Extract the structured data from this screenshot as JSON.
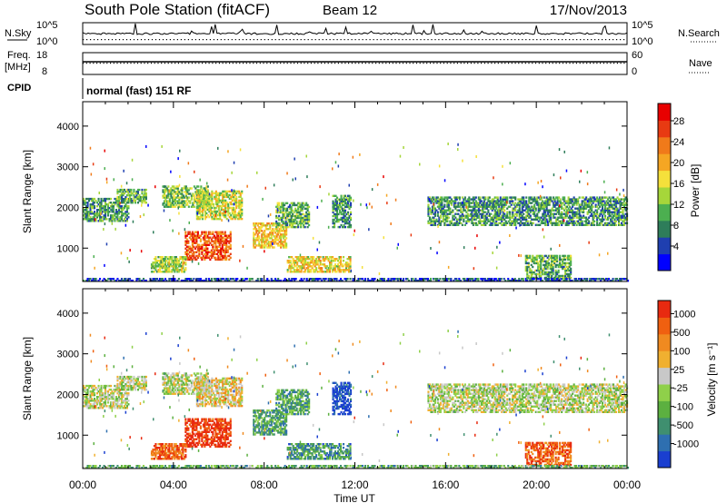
{
  "header": {
    "station": "South Pole Station (fitACF)",
    "beam": "Beam 12",
    "date": "17/Nov/2013"
  },
  "strips": {
    "nsky_label": "N.Sky",
    "nsky_ticks": [
      "10^5",
      "10^0"
    ],
    "nsearch_label": "N.Search",
    "nsearch_ticks": [
      "10^5",
      "10^0"
    ],
    "freq_label_1": "Freq.",
    "freq_label_2": "[MHz]",
    "freq_ticks": [
      "18",
      "8"
    ],
    "nave_label": "Nave",
    "nave_ticks": [
      "60",
      "0"
    ],
    "cpid_label": "CPID",
    "cpid_value": "normal (fast) 151 RF"
  },
  "chart_data": [
    {
      "type": "heatmap",
      "panel": "power",
      "ylabel": "Slant Range [km]",
      "yticks": [
        1000,
        2000,
        3000,
        4000
      ],
      "ylim": [
        180,
        4600
      ],
      "xlabel": "Time UT",
      "xticks": [
        "00:00",
        "04:00",
        "08:00",
        "12:00",
        "16:00",
        "20:00",
        "00:00"
      ],
      "xlim_hours": [
        0,
        24
      ],
      "colorbar": {
        "label": "Power [dB]",
        "ticks": [
          "28",
          "24",
          "20",
          "16",
          "12",
          "8",
          "4"
        ],
        "colors": [
          "#0000ff",
          "#1f3fb0",
          "#2e7d5a",
          "#4caf50",
          "#a6d63a",
          "#f5e03b",
          "#f5a623",
          "#f07a1a",
          "#e83a12",
          "#e80000"
        ]
      },
      "regions": [
        {
          "t0": 0.0,
          "t1": 2.0,
          "r0": 1650,
          "r1": 2200,
          "level": 0.3
        },
        {
          "t0": 1.5,
          "t1": 2.8,
          "r0": 2100,
          "r1": 2450,
          "level": 0.35
        },
        {
          "t0": 3.5,
          "t1": 5.5,
          "r0": 2000,
          "r1": 2500,
          "level": 0.4
        },
        {
          "t0": 4.5,
          "t1": 6.5,
          "r0": 700,
          "r1": 1400,
          "level": 0.8
        },
        {
          "t0": 5.0,
          "t1": 7.0,
          "r0": 1700,
          "r1": 2400,
          "level": 0.5
        },
        {
          "t0": 7.5,
          "t1": 9.0,
          "r0": 1000,
          "r1": 1600,
          "level": 0.6
        },
        {
          "t0": 3.0,
          "t1": 4.5,
          "r0": 400,
          "r1": 800,
          "level": 0.45
        },
        {
          "t0": 8.5,
          "t1": 10.0,
          "r0": 1500,
          "r1": 2100,
          "level": 0.35
        },
        {
          "t0": 9.0,
          "t1": 11.8,
          "r0": 400,
          "r1": 800,
          "level": 0.55
        },
        {
          "t0": 11.0,
          "t1": 11.8,
          "r0": 1500,
          "r1": 2300,
          "level": 0.3
        },
        {
          "t0": 15.2,
          "t1": 24.0,
          "r0": 1550,
          "r1": 2250,
          "level": 0.3
        },
        {
          "t0": 19.5,
          "t1": 21.5,
          "r0": 250,
          "r1": 800,
          "level": 0.35
        },
        {
          "t0": 0.0,
          "t1": 24.0,
          "r0": 180,
          "r1": 260,
          "level": 0.15
        }
      ]
    },
    {
      "type": "heatmap",
      "panel": "velocity",
      "ylabel": "Slant Range [km]",
      "yticks": [
        1000,
        2000,
        3000,
        4000
      ],
      "ylim": [
        180,
        4600
      ],
      "xlabel": "Time UT",
      "xticks": [
        "00:00",
        "04:00",
        "08:00",
        "12:00",
        "16:00",
        "20:00",
        "00:00"
      ],
      "xlim_hours": [
        0,
        24
      ],
      "colorbar": {
        "label": "Velocity [m s⁻¹]",
        "ticks": [
          "1000",
          "500",
          "100",
          "25",
          "-25",
          "-100",
          "-500",
          "-1000"
        ],
        "colors": [
          "#1a3fd0",
          "#2e6fb0",
          "#3f8f6f",
          "#5cb040",
          "#8fd04a",
          "#c8c8c8",
          "#f0b030",
          "#f08a20",
          "#f06010",
          "#e82a10"
        ]
      },
      "regions": [
        {
          "t0": 0.0,
          "t1": 2.0,
          "r0": 1650,
          "r1": 2200,
          "level": 0.5
        },
        {
          "t0": 1.5,
          "t1": 2.8,
          "r0": 2100,
          "r1": 2450,
          "level": 0.5
        },
        {
          "t0": 3.5,
          "t1": 5.5,
          "r0": 2000,
          "r1": 2500,
          "level": 0.5
        },
        {
          "t0": 4.5,
          "t1": 6.5,
          "r0": 700,
          "r1": 1400,
          "level": 0.95
        },
        {
          "t0": 5.0,
          "t1": 7.0,
          "r0": 1700,
          "r1": 2400,
          "level": 0.6
        },
        {
          "t0": 7.5,
          "t1": 9.0,
          "r0": 1000,
          "r1": 1600,
          "level": 0.3
        },
        {
          "t0": 3.0,
          "t1": 4.5,
          "r0": 400,
          "r1": 800,
          "level": 0.85
        },
        {
          "t0": 8.5,
          "t1": 10.0,
          "r0": 1500,
          "r1": 2100,
          "level": 0.3
        },
        {
          "t0": 9.0,
          "t1": 11.8,
          "r0": 400,
          "r1": 800,
          "level": 0.25
        },
        {
          "t0": 11.0,
          "t1": 11.8,
          "r0": 1500,
          "r1": 2300,
          "level": 0.05
        },
        {
          "t0": 15.2,
          "t1": 24.0,
          "r0": 1550,
          "r1": 2250,
          "level": 0.5
        },
        {
          "t0": 19.5,
          "t1": 21.5,
          "r0": 250,
          "r1": 800,
          "level": 0.85
        },
        {
          "t0": 0.0,
          "t1": 24.0,
          "r0": 180,
          "r1": 260,
          "level": 0.35
        }
      ]
    }
  ]
}
